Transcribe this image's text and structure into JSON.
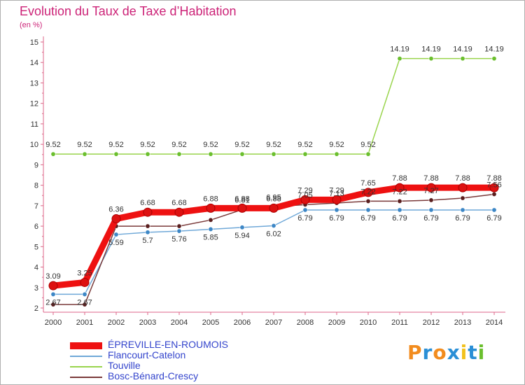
{
  "header": {
    "title": "Evolution du Taux de Taxe d’Habitation",
    "subtitle": "(en %)"
  },
  "chart_data": {
    "type": "line",
    "title": "Evolution du Taux de Taxe d’Habitation",
    "ylabel": "(en %)",
    "xlabel": "",
    "ylim": [
      2,
      15
    ],
    "grid": false,
    "legend_position": "bottom-left",
    "categories": [
      "2000",
      "2001",
      "2002",
      "2003",
      "2004",
      "2005",
      "2006",
      "2007",
      "2008",
      "2009",
      "2010",
      "2011",
      "2012",
      "2013",
      "2014"
    ],
    "y_ticks": [
      2,
      3,
      4,
      5,
      6,
      7,
      8,
      9,
      10,
      11,
      12,
      13,
      14,
      15
    ],
    "series": [
      {
        "name": "Touville",
        "color": "#99d44c",
        "marker": "#6bbf2e",
        "values": [
          9.52,
          9.52,
          9.52,
          9.52,
          9.52,
          9.52,
          9.52,
          9.52,
          9.52,
          9.52,
          9.52,
          14.19,
          14.19,
          14.19,
          14.19
        ],
        "labels": [
          "9.52",
          "9.52",
          "9.52",
          "9.52",
          "9.52",
          "9.52",
          "9.52",
          "9.52",
          "9.52",
          "9.52",
          "9.52",
          "14.19",
          "14.19",
          "14.19",
          "14.19"
        ]
      },
      {
        "name": "Flancourt-Catelon",
        "color": "#6fa8d8",
        "marker": "#3d87c6",
        "values": [
          2.67,
          2.67,
          5.59,
          5.7,
          5.76,
          5.85,
          5.94,
          6.02,
          6.79,
          6.79,
          6.79,
          6.79,
          6.79,
          6.79,
          6.79
        ],
        "labels": [
          "2.67",
          "2.67",
          "5.59",
          "5.7",
          "5.76",
          "5.85",
          "5.94",
          "6.02",
          "6.79",
          "6.79",
          "6.79",
          "6.79",
          "6.79",
          "6.79",
          "6.79"
        ]
      },
      {
        "name": "Bosc-Bénard-Crescy",
        "color": "#7a3a3a",
        "marker": "#5a1f1f",
        "values": [
          2.17,
          2.17,
          6.0,
          6.0,
          6.0,
          6.3,
          6.81,
          6.95,
          7.05,
          7.13,
          7.22,
          7.22,
          7.27,
          7.37,
          7.56
        ],
        "labels": [
          "",
          "",
          "",
          "",
          "",
          "",
          "6.81",
          "6.95",
          "7.05",
          "7.13",
          "7.22",
          "7.22",
          "7.27",
          "",
          "7.56"
        ]
      },
      {
        "name": "ÉPREVILLE-EN-ROUMOIS",
        "color": "#ee1111",
        "marker": "#dd1111",
        "values": [
          3.09,
          3.25,
          6.36,
          6.68,
          6.68,
          6.88,
          6.88,
          6.88,
          7.29,
          7.29,
          7.65,
          7.88,
          7.88,
          7.88,
          7.88
        ],
        "labels": [
          "3.09",
          "3.25",
          "6.36",
          "6.68",
          "6.68",
          "6.88",
          "6.88",
          "6.88",
          "7.29",
          "7.29",
          "7.65",
          "7.88",
          "7.88",
          "7.88",
          "7.88"
        ]
      }
    ]
  },
  "legend": {
    "items": [
      {
        "label": "ÉPREVILLE-EN-ROUMOIS",
        "color": "#ee1111"
      },
      {
        "label": "Flancourt-Catelon",
        "color": "#6fa8d8"
      },
      {
        "label": "Touville",
        "color": "#99d44c"
      },
      {
        "label": "Bosc-Bénard-Crescy",
        "color": "#7a3a3a"
      }
    ]
  },
  "brand": {
    "letters": [
      "P",
      "r",
      "o",
      "x",
      "i",
      "t",
      "i"
    ],
    "colors": [
      "#f28c1e",
      "#2a8fd6",
      "#f28c1e",
      "#2a8fd6",
      "#f2c21e",
      "#2a8fd6",
      "#6bbf2e"
    ]
  }
}
